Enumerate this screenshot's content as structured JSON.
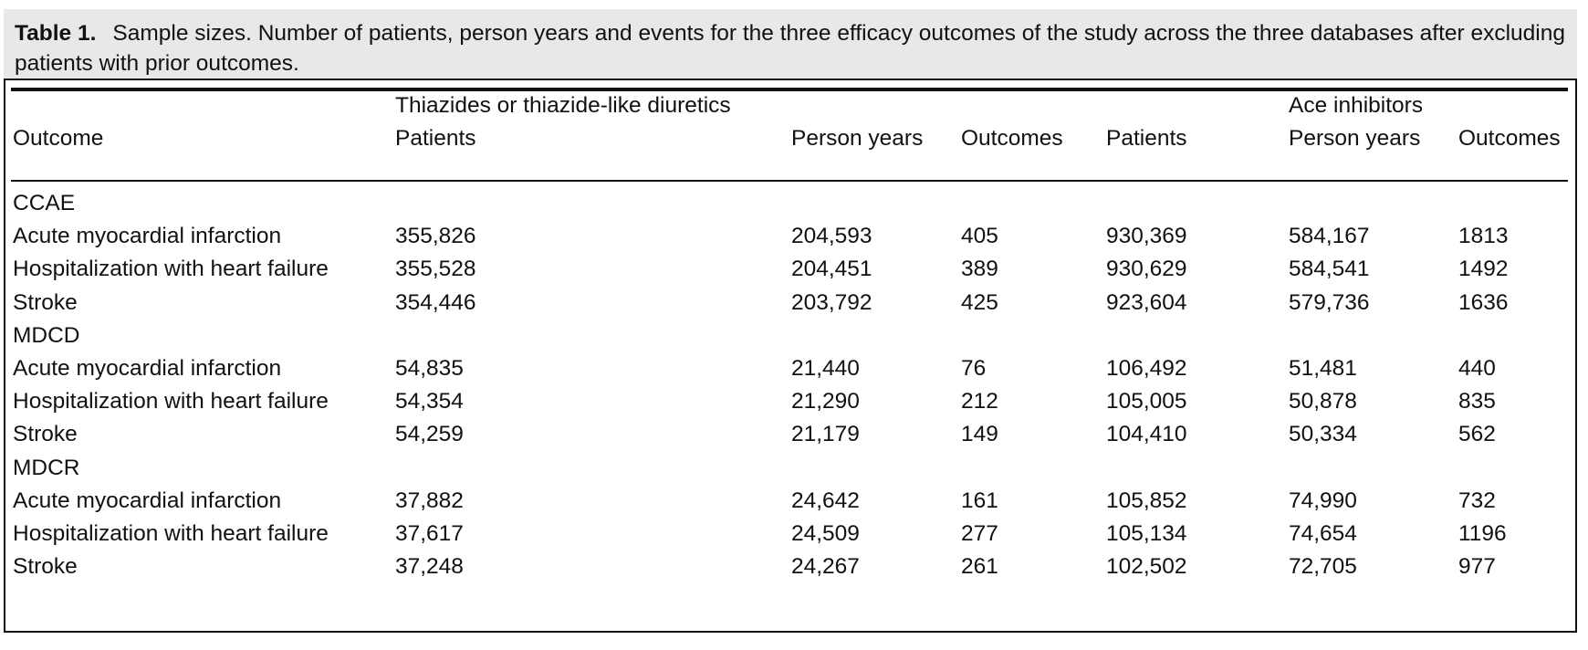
{
  "caption": {
    "label": "Table 1.",
    "text": "Sample sizes. Number of patients, person years and events for the three efficacy outcomes of the study across the three databases after excluding patients with prior outcomes."
  },
  "header": {
    "group_thiazides": "Thiazides or thiazide-like diuretics",
    "group_ace": "Ace inhibitors",
    "outcome": "Outcome",
    "patients_1": "Patients",
    "person_years_1": "Person years",
    "outcomes_1": "Outcomes",
    "patients_2": "Patients",
    "person_years_2": "Person years",
    "outcomes_2": "Outcomes"
  },
  "sections": [
    {
      "name": "CCAE",
      "rows": [
        [
          "Acute myocardial infarction",
          "355,826",
          "204,593",
          "405",
          "930,369",
          "584,167",
          "1813"
        ],
        [
          "Hospitalization with heart failure",
          "355,528",
          "204,451",
          "389",
          "930,629",
          "584,541",
          "1492"
        ],
        [
          "Stroke",
          "354,446",
          "203,792",
          "425",
          "923,604",
          "579,736",
          "1636"
        ]
      ]
    },
    {
      "name": "MDCD",
      "rows": [
        [
          "Acute myocardial infarction",
          "54,835",
          "21,440",
          "76",
          "106,492",
          "51,481",
          "440"
        ],
        [
          "Hospitalization with heart failure",
          "54,354",
          "21,290",
          "212",
          "105,005",
          "50,878",
          "835"
        ],
        [
          "Stroke",
          "54,259",
          "21,179",
          "149",
          "104,410",
          "50,334",
          "562"
        ]
      ]
    },
    {
      "name": "MDCR",
      "rows": [
        [
          "Acute myocardial infarction",
          "37,882",
          "24,642",
          "161",
          "105,852",
          "74,990",
          "732"
        ],
        [
          "Hospitalization with heart failure",
          "37,617",
          "24,509",
          "277",
          "105,134",
          "74,654",
          "1196"
        ],
        [
          "Stroke",
          "37,248",
          "24,267",
          "261",
          "102,502",
          "72,705",
          "977"
        ]
      ]
    }
  ]
}
